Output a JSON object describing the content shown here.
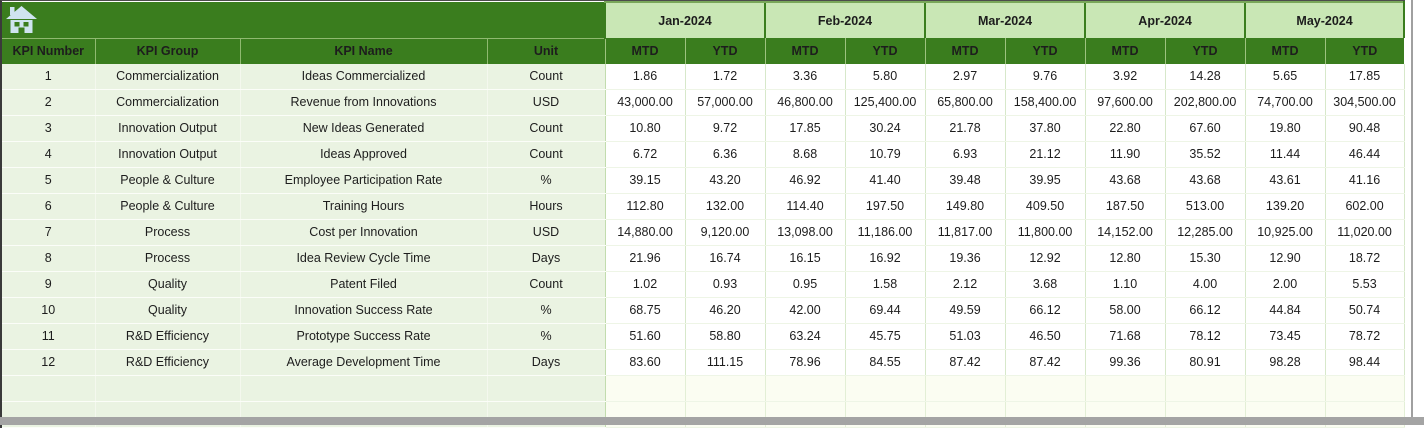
{
  "colors": {
    "header_dark_green": "#3a7d1e",
    "month_light_green": "#c9e7b5",
    "row_light_green": "#eaf3e2",
    "grid_green": "#d7e8ca",
    "chrome_gray": "#a4a4a4",
    "home_icon_blue": "#cfe4f0"
  },
  "icons": {
    "home": "home-icon"
  },
  "table": {
    "left_headers": [
      "KPI Number",
      "KPI Group",
      "KPI Name",
      "Unit"
    ],
    "months": [
      "Jan-2024",
      "Feb-2024",
      "Mar-2024",
      "Apr-2024",
      "May-2024"
    ],
    "period_headers": [
      "MTD",
      "YTD"
    ],
    "empty_rows": 2,
    "rows": [
      {
        "number": "1",
        "group": "Commercialization",
        "name": "Ideas Commercialized",
        "unit": "Count",
        "values": [
          "1.86",
          "1.72",
          "3.36",
          "5.80",
          "2.97",
          "9.76",
          "3.92",
          "14.28",
          "5.65",
          "17.85"
        ]
      },
      {
        "number": "2",
        "group": "Commercialization",
        "name": "Revenue from Innovations",
        "unit": "USD",
        "values": [
          "43,000.00",
          "57,000.00",
          "46,800.00",
          "125,400.00",
          "65,800.00",
          "158,400.00",
          "97,600.00",
          "202,800.00",
          "74,700.00",
          "304,500.00"
        ]
      },
      {
        "number": "3",
        "group": "Innovation Output",
        "name": "New Ideas Generated",
        "unit": "Count",
        "values": [
          "10.80",
          "9.72",
          "17.85",
          "30.24",
          "21.78",
          "37.80",
          "22.80",
          "67.60",
          "19.80",
          "90.48"
        ]
      },
      {
        "number": "4",
        "group": "Innovation Output",
        "name": "Ideas Approved",
        "unit": "Count",
        "values": [
          "6.72",
          "6.36",
          "8.68",
          "10.79",
          "6.93",
          "21.12",
          "11.90",
          "35.52",
          "11.44",
          "46.44"
        ]
      },
      {
        "number": "5",
        "group": "People & Culture",
        "name": "Employee Participation Rate",
        "unit": "%",
        "values": [
          "39.15",
          "43.20",
          "46.92",
          "41.40",
          "39.48",
          "39.95",
          "43.68",
          "43.68",
          "43.61",
          "41.16"
        ]
      },
      {
        "number": "6",
        "group": "People & Culture",
        "name": "Training Hours",
        "unit": "Hours",
        "values": [
          "112.80",
          "132.00",
          "114.40",
          "197.50",
          "149.80",
          "409.50",
          "187.50",
          "513.00",
          "139.20",
          "602.00"
        ]
      },
      {
        "number": "7",
        "group": "Process",
        "name": "Cost per Innovation",
        "unit": "USD",
        "values": [
          "14,880.00",
          "9,120.00",
          "13,098.00",
          "11,186.00",
          "11,817.00",
          "11,800.00",
          "14,152.00",
          "12,285.00",
          "10,925.00",
          "11,020.00"
        ]
      },
      {
        "number": "8",
        "group": "Process",
        "name": "Idea Review Cycle Time",
        "unit": "Days",
        "values": [
          "21.96",
          "16.74",
          "16.15",
          "16.92",
          "19.36",
          "12.92",
          "12.80",
          "15.30",
          "12.90",
          "18.72"
        ]
      },
      {
        "number": "9",
        "group": "Quality",
        "name": "Patent Filed",
        "unit": "Count",
        "values": [
          "1.02",
          "0.93",
          "0.95",
          "1.58",
          "2.12",
          "3.68",
          "1.10",
          "4.00",
          "2.00",
          "5.53"
        ]
      },
      {
        "number": "10",
        "group": "Quality",
        "name": "Innovation Success Rate",
        "unit": "%",
        "values": [
          "68.75",
          "46.20",
          "42.00",
          "69.44",
          "49.59",
          "66.12",
          "58.00",
          "66.12",
          "44.84",
          "50.74"
        ]
      },
      {
        "number": "11",
        "group": "R&D Efficiency",
        "name": "Prototype Success Rate",
        "unit": "%",
        "values": [
          "51.60",
          "58.80",
          "63.24",
          "45.75",
          "51.03",
          "46.50",
          "71.68",
          "78.12",
          "73.45",
          "78.72"
        ]
      },
      {
        "number": "12",
        "group": "R&D Efficiency",
        "name": "Average Development Time",
        "unit": "Days",
        "values": [
          "83.60",
          "111.15",
          "78.96",
          "84.55",
          "87.42",
          "87.42",
          "99.36",
          "80.91",
          "98.28",
          "98.44"
        ]
      }
    ]
  }
}
